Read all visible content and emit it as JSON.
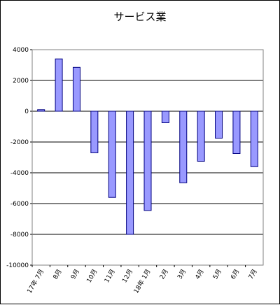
{
  "chart_data": {
    "type": "bar",
    "title": "サービス業",
    "xlabel": "",
    "ylabel": "",
    "categories": [
      "17年 7月",
      "8月",
      "9月",
      "10月",
      "11月",
      "12月",
      "18年 1月",
      "2月",
      "3月",
      "4月",
      "5月",
      "6月",
      "7月"
    ],
    "values": [
      100,
      3400,
      2850,
      -2700,
      -5600,
      -8000,
      -6450,
      -750,
      -4650,
      -3250,
      -1750,
      -2750,
      -3600
    ],
    "ylim": [
      -10000,
      4000
    ],
    "yticks": [
      4000,
      2000,
      0,
      -2000,
      -4000,
      -6000,
      -8000,
      -10000
    ],
    "grid": true,
    "bar_color": "#9999ff",
    "bar_edge_color": "#000080"
  }
}
